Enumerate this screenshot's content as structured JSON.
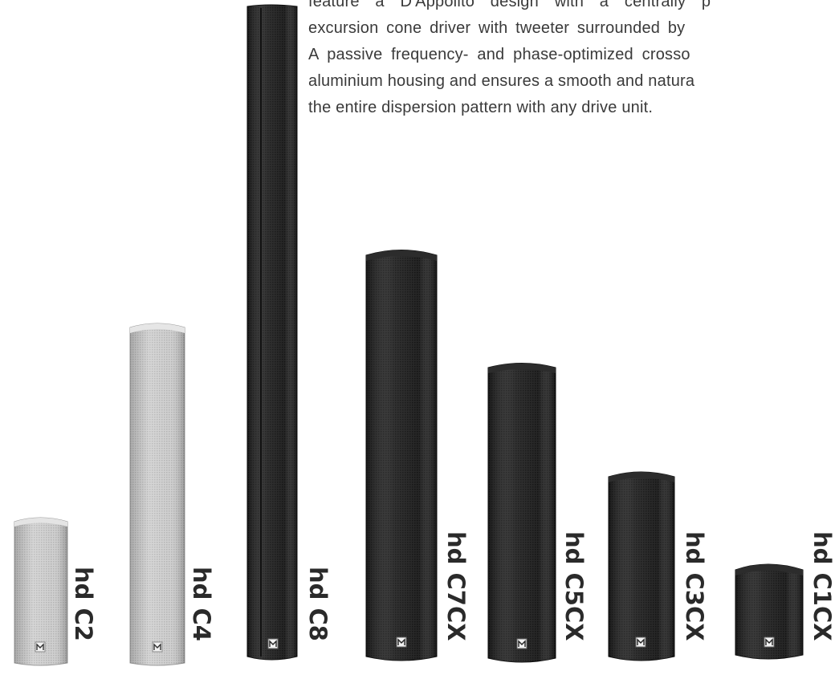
{
  "description_lines": [
    "feature a D'Appolito design with a centrally p",
    "excursion cone driver with tweeter surrounded by",
    "A passive frequency- and phase-optimized crosso",
    "aluminium housing and ensures a smooth and natura",
    "the entire dispersion pattern with any drive unit."
  ],
  "products": [
    {
      "label": "hd C2",
      "finish": "white"
    },
    {
      "label": "hd C4",
      "finish": "white"
    },
    {
      "label": "hd C8",
      "finish": "black"
    },
    {
      "label": "hd C7CX",
      "finish": "black"
    },
    {
      "label": "hd C5CX",
      "finish": "black"
    },
    {
      "label": "hd C3CX",
      "finish": "black"
    },
    {
      "label": "hd C1CX",
      "finish": "black"
    }
  ],
  "colors": {
    "text": "#3a3a3a",
    "label": "#2a2a2a",
    "white_grille": "#c9c9c9",
    "black_grille": "#1e1e1e"
  },
  "icons": [
    "brand-logo-icon"
  ]
}
